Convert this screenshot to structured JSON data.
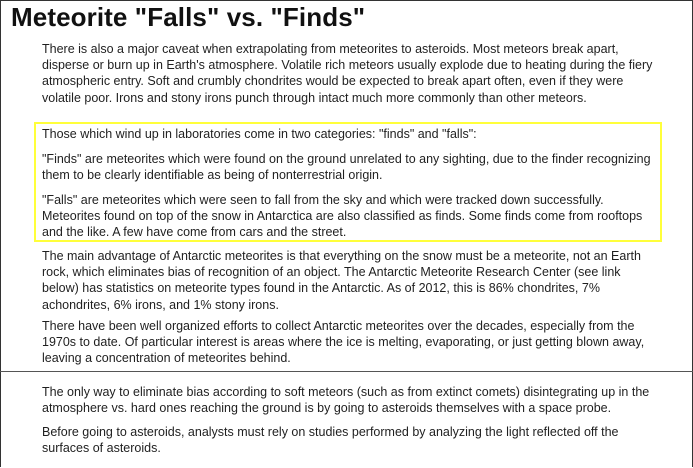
{
  "title": "Meteorite \"Falls\" vs. \"Finds\"",
  "paragraphs": {
    "caveat": "There is also a major caveat when extrapolating from meteorites to asteroids. Most meteors break apart, disperse or burn up in Earth's atmosphere. Volatile rich meteors usually explode due to heating during the fiery atmospheric entry. Soft and crumbly chondrites would be expected to break apart often, even if they were volatile poor. Irons and stony irons punch through intact much more commonly than other meteors.",
    "categories": "Those which wind up in laboratories come in two categories: \"finds\" and \"falls\":",
    "finds": "\"Finds\" are meteorites which were found on the ground unrelated to any sighting, due to the finder recognizing them to be clearly identifiable as being of nonterrestrial origin.",
    "falls": "\"Falls\" are meteorites which were seen to fall from the sky and which were tracked down successfully. Meteorites found on top of the snow in Antarctica are also classified as finds. Some finds come from rooftops and the like. A few have come from cars and the street.",
    "antarctic": "The main advantage of Antarctic meteorites is that everything on the snow must be a meteorite, not an Earth rock, which eliminates bias of recognition of an object. The Antarctic Meteorite Research Center (see link below) has statistics on meteorite types found in the Antarctic. As of 2012, this is 86% chondrites, 7% achondrites, 6% irons, and 1% stony irons.",
    "efforts": "There have been well organized efforts to collect Antarctic meteorites over the decades, especially from the 1970s to date. Of particular interest is areas where the ice is melting, evaporating, or just getting blown away, leaving a concentration of meteorites behind.",
    "bias": "The only way to eliminate bias according to soft meteors (such as from extinct comets) disintegrating up in the atmosphere vs. hard ones reaching the ground is by going to asteroids themselves with a space probe.",
    "light": "Before going to asteroids, analysts must rely on studies performed by analyzing the light reflected off the surfaces of asteroids."
  },
  "colors": {
    "highlight_border": "#ffff3a"
  }
}
